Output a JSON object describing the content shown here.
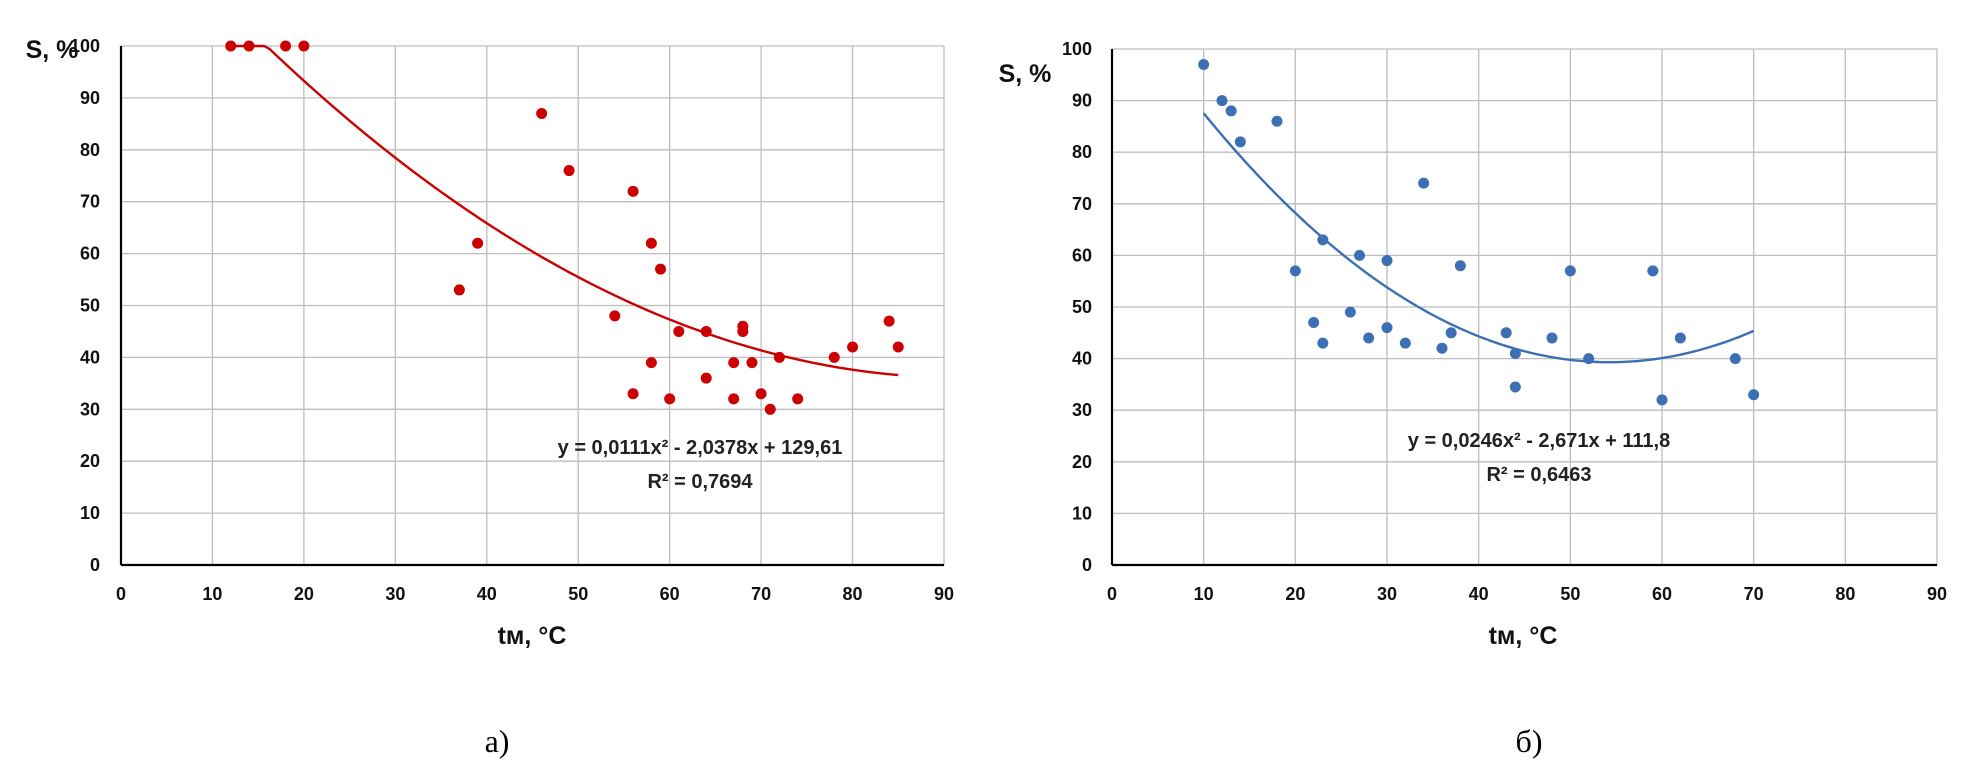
{
  "chart_data": [
    {
      "type": "scatter",
      "panel_caption": "а)",
      "xlabel": "tм, °C",
      "ylabel": "S, %",
      "xlim": [
        0,
        90
      ],
      "ylim": [
        0,
        100
      ],
      "xticks": [
        "0",
        "10",
        "20",
        "30",
        "40",
        "50",
        "60",
        "70",
        "80",
        "90"
      ],
      "yticks": [
        "0",
        "10",
        "20",
        "30",
        "40",
        "50",
        "60",
        "70",
        "80",
        "90",
        "100"
      ],
      "grid": true,
      "color": "#cc0000",
      "series": [
        {
          "name": "data",
          "points": [
            [
              12,
              100
            ],
            [
              14,
              100
            ],
            [
              18,
              100
            ],
            [
              20,
              100
            ],
            [
              37,
              53
            ],
            [
              39,
              62
            ],
            [
              46,
              87
            ],
            [
              49,
              76
            ],
            [
              54,
              48
            ],
            [
              56,
              72
            ],
            [
              56,
              33
            ],
            [
              58,
              62
            ],
            [
              58,
              39
            ],
            [
              59,
              57
            ],
            [
              60,
              32
            ],
            [
              61,
              45
            ],
            [
              64,
              45
            ],
            [
              64,
              36
            ],
            [
              67,
              39
            ],
            [
              67,
              32
            ],
            [
              68,
              46
            ],
            [
              68,
              45
            ],
            [
              69,
              39
            ],
            [
              70,
              33
            ],
            [
              71,
              30
            ],
            [
              72,
              40
            ],
            [
              74,
              32
            ],
            [
              78,
              40
            ],
            [
              80,
              42
            ],
            [
              84,
              47
            ],
            [
              85,
              42
            ]
          ]
        }
      ],
      "trendline": {
        "type": "polynomial",
        "coefficients": [
          0.0111,
          -2.0378,
          129.61
        ],
        "x_range": [
          12,
          85
        ]
      },
      "annotation": {
        "equation": "y = 0,0111x² - 2,0378x + 129,61",
        "r_squared": "R² = 0,7694"
      }
    },
    {
      "type": "scatter",
      "panel_caption": "б)",
      "xlabel": "tм, °C",
      "ylabel": "S, %",
      "xlim": [
        0,
        90
      ],
      "ylim": [
        0,
        100
      ],
      "xticks": [
        "0",
        "10",
        "20",
        "30",
        "40",
        "50",
        "60",
        "70",
        "80",
        "90"
      ],
      "yticks": [
        "0",
        "10",
        "20",
        "30",
        "40",
        "50",
        "60",
        "70",
        "80",
        "90",
        "100"
      ],
      "grid": true,
      "color": "#3c6fb4",
      "series": [
        {
          "name": "data",
          "points": [
            [
              10,
              97
            ],
            [
              12,
              90
            ],
            [
              13,
              88
            ],
            [
              14,
              82
            ],
            [
              18,
              86
            ],
            [
              20,
              57
            ],
            [
              22,
              47
            ],
            [
              23,
              63
            ],
            [
              23,
              43
            ],
            [
              26,
              49
            ],
            [
              27,
              60
            ],
            [
              28,
              44
            ],
            [
              30,
              59
            ],
            [
              30,
              46
            ],
            [
              32,
              43
            ],
            [
              34,
              74
            ],
            [
              36,
              42
            ],
            [
              37,
              45
            ],
            [
              38,
              58
            ],
            [
              43,
              45
            ],
            [
              44,
              41
            ],
            [
              44,
              34.5
            ],
            [
              48,
              44
            ],
            [
              50,
              57
            ],
            [
              52,
              40
            ],
            [
              59,
              57
            ],
            [
              60,
              32
            ],
            [
              62,
              44
            ],
            [
              68,
              40
            ],
            [
              70,
              33
            ]
          ]
        }
      ],
      "trendline": {
        "type": "polynomial",
        "coefficients": [
          0.0246,
          -2.671,
          111.8
        ],
        "x_range": [
          10,
          70
        ]
      },
      "annotation": {
        "equation": "y = 0,0246x² - 2,671x + 111,8",
        "r_squared": "R² = 0,6463"
      }
    }
  ]
}
